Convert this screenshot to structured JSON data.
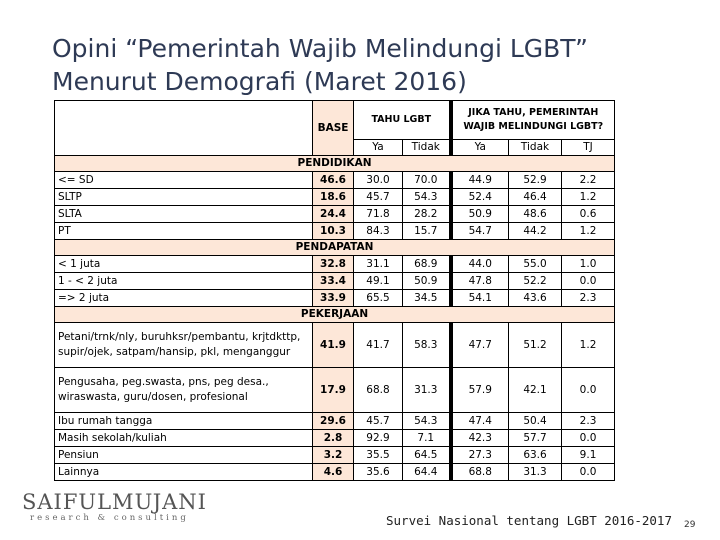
{
  "title": {
    "line1": "Opini “Pemerintah Wajib Melindungi LGBT”",
    "line2": "Menurut Demografi (Maret 2016)"
  },
  "table": {
    "base_header": "BASE",
    "group1_header": "TAHU LGBT",
    "group2_header": "JIKA TAHU, PEMERINTAH WAJIB MELINDUNGI LGBT?",
    "sub_headers": [
      "Ya",
      "Tidak",
      "Ya",
      "Tidak",
      "TJ"
    ],
    "sections": [
      {
        "title": "PENDIDIKAN",
        "rows": [
          {
            "label": "<= SD",
            "base": "46.6",
            "values": [
              "30.0",
              "70.0",
              "44.9",
              "52.9",
              "2.2"
            ]
          },
          {
            "label": "SLTP",
            "base": "18.6",
            "values": [
              "45.7",
              "54.3",
              "52.4",
              "46.4",
              "1.2"
            ]
          },
          {
            "label": "SLTA",
            "base": "24.4",
            "values": [
              "71.8",
              "28.2",
              "50.9",
              "48.6",
              "0.6"
            ]
          },
          {
            "label": "PT",
            "base": "10.3",
            "values": [
              "84.3",
              "15.7",
              "54.7",
              "44.2",
              "1.2"
            ]
          }
        ]
      },
      {
        "title": "PENDAPATAN",
        "rows": [
          {
            "label": "< 1 juta",
            "base": "32.8",
            "values": [
              "31.1",
              "68.9",
              "44.0",
              "55.0",
              "1.0"
            ]
          },
          {
            "label": "1 - < 2 juta",
            "base": "33.4",
            "values": [
              "49.1",
              "50.9",
              "47.8",
              "52.2",
              "0.0"
            ]
          },
          {
            "label": "=> 2 juta",
            "base": "33.9",
            "values": [
              "65.5",
              "34.5",
              "54.1",
              "43.6",
              "2.3"
            ]
          }
        ]
      },
      {
        "title": "PEKERJAAN",
        "rows": [
          {
            "label": "Petani/trnk/nly, buruhksr/pembantu, krjtdkttp, supir/ojek, satpam/hansip, pkl, menganggur",
            "base": "41.9",
            "values": [
              "41.7",
              "58.3",
              "47.7",
              "51.2",
              "1.2"
            ]
          },
          {
            "label": "Pengusaha, peg.swasta, pns, peg desa., wiraswasta, guru/dosen, profesional",
            "base": "17.9",
            "values": [
              "68.8",
              "31.3",
              "57.9",
              "42.1",
              "0.0"
            ]
          },
          {
            "label": "Ibu rumah tangga",
            "base": "29.6",
            "values": [
              "45.7",
              "54.3",
              "47.4",
              "50.4",
              "2.3"
            ]
          },
          {
            "label": "Masih sekolah/kuliah",
            "base": "2.8",
            "values": [
              "92.9",
              "7.1",
              "42.3",
              "57.7",
              "0.0"
            ]
          },
          {
            "label": "Pensiun",
            "base": "3.2",
            "values": [
              "35.5",
              "64.5",
              "27.3",
              "63.6",
              "9.1"
            ]
          },
          {
            "label": "Lainnya",
            "base": "4.6",
            "values": [
              "35.6",
              "64.4",
              "68.8",
              "31.3",
              "0.0"
            ]
          }
        ]
      }
    ]
  },
  "logo": {
    "main": "SAIFULMUJANI",
    "sub": "research & consulting"
  },
  "footer": {
    "text": "Survei Nasional tentang LGBT 2016-2017",
    "page_number": "29"
  }
}
